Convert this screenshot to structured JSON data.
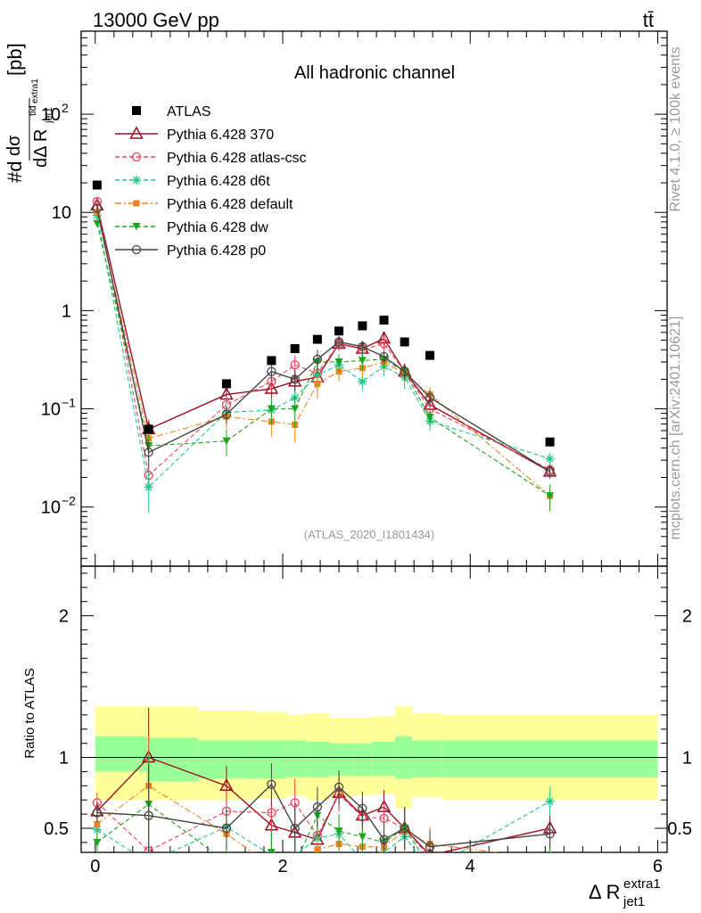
{
  "header": {
    "energy": "13000 GeV pp",
    "process": "tt̄",
    "channel": "All hadronic channel",
    "analysis": "(ATLAS_2020_I1801434)",
    "rivet": "Rivet 4.1.0, ≥ 100k events",
    "source": "mcplots.cern.ch [arXiv:2401.10621]"
  },
  "axes": {
    "ylabel_main": "#d dσ^tid / dΔ R_jet1^extra1 [pb]",
    "ylabel_ratio": "Ratio to ATLAS",
    "xlabel": "Δ R_jet1^extra1",
    "x_ticks": [
      "0",
      "2",
      "4",
      "6"
    ],
    "y_ticks_main": [
      "10^-2",
      "10^-1",
      "1",
      "10",
      "10^2"
    ],
    "y_ticks_ratio": [
      "0.5",
      "1",
      "2"
    ]
  },
  "legend": [
    {
      "key": "atlas",
      "label": "ATLAS",
      "color": "#000000",
      "marker": "square",
      "dash": "none"
    },
    {
      "key": "p370",
      "label": "Pythia 6.428 370",
      "color": "#9b1020",
      "marker": "triangle-open",
      "dash": "solid"
    },
    {
      "key": "atlascsc",
      "label": "Pythia 6.428 atlas-csc",
      "color": "#e8435a",
      "marker": "circle-open",
      "dash": "dashed"
    },
    {
      "key": "d6t",
      "label": "Pythia 6.428 d6t",
      "color": "#1ec88c",
      "marker": "star",
      "dash": "dashed"
    },
    {
      "key": "default",
      "label": "Pythia 6.428 default",
      "color": "#f0821e",
      "marker": "square-small",
      "dash": "dashdot"
    },
    {
      "key": "dw",
      "label": "Pythia 6.428 dw",
      "color": "#1ea51e",
      "marker": "triangle-down",
      "dash": "dashed"
    },
    {
      "key": "p0",
      "label": "Pythia 6.428 p0",
      "color": "#444444",
      "marker": "circle-open",
      "dash": "solid"
    }
  ],
  "chart_data": {
    "type": "line",
    "title": "All hadronic channel",
    "xlabel": "Δ R_jet1^extra1",
    "ylabel": "#d dσ^tid / dΔ R_jet1^extra1 [pb]",
    "xlim": [
      -0.15,
      6.1
    ],
    "ylim_main": [
      0.0025,
      700
    ],
    "yscale_main": "log",
    "ylim_ratio": [
      0.33,
      2.35
    ],
    "x": [
      0.02,
      0.57,
      1.4,
      1.88,
      2.13,
      2.37,
      2.6,
      2.85,
      3.08,
      3.3,
      3.57,
      4.85
    ],
    "atlas": [
      19,
      0.062,
      0.18,
      0.31,
      0.41,
      0.51,
      0.62,
      0.7,
      0.8,
      0.48,
      0.35,
      0.046
    ],
    "series": [
      {
        "name": "Pythia 6.428 370",
        "key": "p370",
        "values": [
          11.8,
          0.062,
          0.14,
          0.16,
          0.19,
          0.21,
          0.46,
          0.41,
          0.52,
          0.24,
          0.11,
          0.023
        ],
        "rel_err": [
          0.06,
          0.25,
          0.2,
          0.2,
          0.25,
          0.25,
          0.15,
          0.15,
          0.15,
          0.2,
          0.2,
          0.15
        ]
      },
      {
        "name": "Pythia 6.428 atlas-csc",
        "key": "atlascsc",
        "values": [
          12.9,
          0.021,
          0.11,
          0.19,
          0.28,
          0.23,
          0.46,
          0.4,
          0.46,
          0.24,
          0.1,
          0.024
        ],
        "rel_err": [
          0.06,
          0.3,
          0.2,
          0.2,
          0.25,
          0.25,
          0.15,
          0.15,
          0.15,
          0.2,
          0.2,
          0.15
        ]
      },
      {
        "name": "Pythia 6.428 d6t",
        "key": "d6t",
        "values": [
          9.3,
          0.016,
          0.092,
          0.097,
          0.13,
          0.22,
          0.28,
          0.19,
          0.27,
          0.21,
          0.075,
          0.031
        ],
        "rel_err": [
          0.06,
          0.45,
          0.25,
          0.25,
          0.3,
          0.25,
          0.2,
          0.2,
          0.2,
          0.25,
          0.2,
          0.15
        ]
      },
      {
        "name": "Pythia 6.428 default",
        "key": "default",
        "values": [
          10.1,
          0.05,
          0.083,
          0.074,
          0.069,
          0.18,
          0.24,
          0.26,
          0.3,
          0.23,
          0.14,
          0.013
        ],
        "rel_err": [
          0.06,
          0.3,
          0.25,
          0.3,
          0.35,
          0.3,
          0.2,
          0.2,
          0.2,
          0.2,
          0.2,
          0.3
        ]
      },
      {
        "name": "Pythia 6.428 dw",
        "key": "dw",
        "values": [
          7.7,
          0.042,
          0.047,
          0.1,
          0.1,
          0.3,
          0.3,
          0.31,
          0.32,
          0.24,
          0.082,
          0.013
        ],
        "rel_err": [
          0.06,
          0.3,
          0.3,
          0.3,
          0.35,
          0.25,
          0.2,
          0.2,
          0.2,
          0.2,
          0.2,
          0.3
        ]
      },
      {
        "name": "Pythia 6.428 p0",
        "key": "p0",
        "values": [
          11.0,
          0.036,
          0.088,
          0.24,
          0.2,
          0.32,
          0.48,
          0.43,
          0.34,
          0.24,
          0.13,
          0.023
        ],
        "rel_err": [
          0.06,
          0.3,
          0.2,
          0.2,
          0.25,
          0.25,
          0.15,
          0.15,
          0.15,
          0.2,
          0.2,
          0.15
        ]
      }
    ],
    "ratio": {
      "p370": [
        0.62,
        1.0,
        0.8,
        0.52,
        0.47,
        0.42,
        0.75,
        0.59,
        0.65,
        0.5,
        0.31,
        0.5
      ],
      "atlascsc": [
        0.68,
        0.34,
        0.62,
        0.61,
        0.68,
        0.45,
        0.74,
        0.58,
        0.57,
        0.5,
        0.29,
        0.3
      ],
      "d6t": [
        0.49,
        0.26,
        0.51,
        0.31,
        0.31,
        0.43,
        0.46,
        0.27,
        0.33,
        0.44,
        0.21,
        0.69
      ],
      "default": [
        0.53,
        0.8,
        0.46,
        0.24,
        0.17,
        0.35,
        0.39,
        0.37,
        0.37,
        0.48,
        0.39,
        0.28
      ],
      "dw": [
        0.4,
        0.67,
        0.26,
        0.33,
        0.25,
        0.59,
        0.48,
        0.44,
        0.4,
        0.5,
        0.23,
        0.28
      ],
      "p0": [
        0.61,
        0.59,
        0.5,
        0.81,
        0.5,
        0.65,
        0.79,
        0.64,
        0.42,
        0.5,
        0.37,
        0.46
      ]
    },
    "ratio_err": [
      0.07,
      0.35,
      0.14,
      0.15,
      0.17,
      0.14,
      0.12,
      0.12,
      0.12,
      0.15,
      0.12,
      0.1
    ],
    "bands": {
      "x_edges": [
        0.0,
        0.55,
        1.1,
        1.7,
        2.05,
        2.25,
        2.5,
        2.75,
        2.95,
        3.2,
        3.38,
        3.7,
        6.0
      ],
      "inner": [
        [
          0.9,
          1.15
        ],
        [
          0.83,
          1.14
        ],
        [
          0.85,
          1.12
        ],
        [
          0.85,
          1.12
        ],
        [
          0.86,
          1.12
        ],
        [
          0.86,
          1.11
        ],
        [
          0.87,
          1.1
        ],
        [
          0.87,
          1.1
        ],
        [
          0.87,
          1.11
        ],
        [
          0.85,
          1.15
        ],
        [
          0.86,
          1.12
        ],
        [
          0.86,
          1.12
        ]
      ],
      "outer": [
        [
          0.7,
          1.36
        ],
        [
          0.7,
          1.36
        ],
        [
          0.7,
          1.33
        ],
        [
          0.71,
          1.32
        ],
        [
          0.73,
          1.3
        ],
        [
          0.7,
          1.31
        ],
        [
          0.72,
          1.28
        ],
        [
          0.73,
          1.28
        ],
        [
          0.74,
          1.29
        ],
        [
          0.64,
          1.36
        ],
        [
          0.72,
          1.31
        ],
        [
          0.7,
          1.3
        ]
      ],
      "inner_color": "#99ff99",
      "outer_color": "#ffff99"
    }
  }
}
